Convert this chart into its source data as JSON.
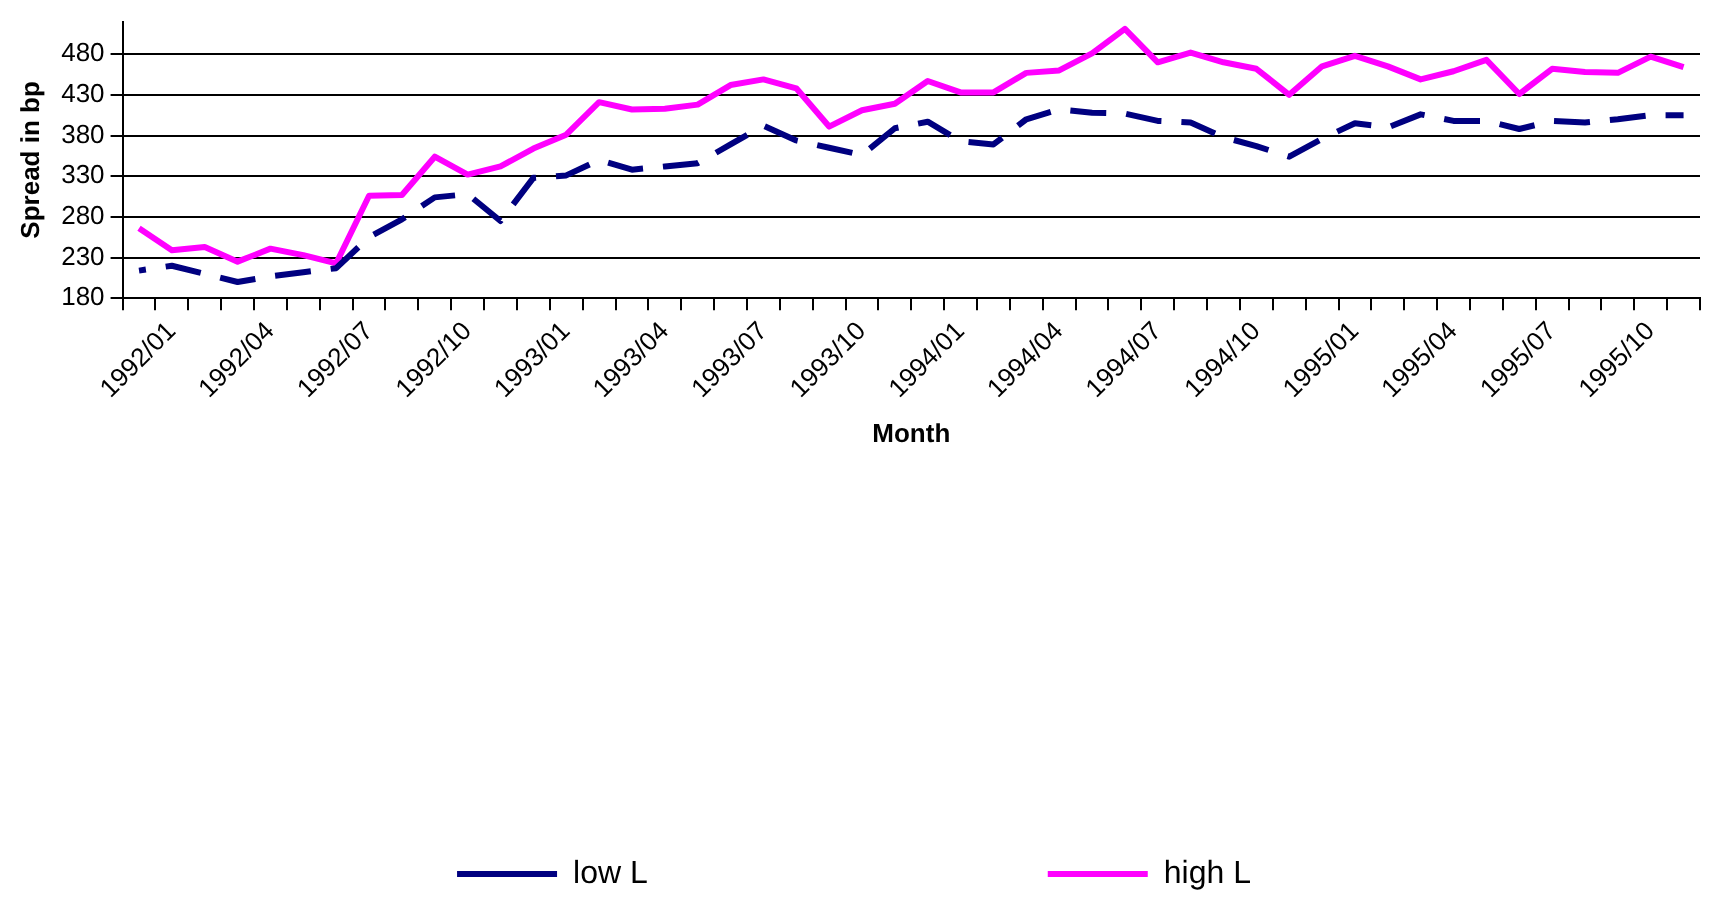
{
  "chart_data": {
    "type": "line",
    "xlabel": "Month",
    "ylabel": "Spread in bp",
    "categories": [
      null,
      "1992/01",
      null,
      null,
      "1992/04",
      null,
      null,
      "1992/07",
      null,
      null,
      "1992/10",
      null,
      null,
      "1993/01",
      null,
      null,
      "1993/04",
      null,
      null,
      "1993/07",
      null,
      null,
      "1993/10",
      null,
      null,
      "1994/01",
      null,
      null,
      "1994/04",
      null,
      null,
      "1994/07",
      null,
      null,
      "1994/10",
      null,
      null,
      "1995/01",
      null,
      null,
      "1995/04",
      null,
      null,
      "1995/07",
      null,
      null,
      "1995/10",
      null
    ],
    "series": [
      {
        "name": "low L",
        "color": "#000080",
        "line_style": "dashed",
        "values": [
          214,
          220,
          210,
          200,
          207,
          212,
          217,
          255,
          277,
          304,
          308,
          275,
          328,
          331,
          350,
          338,
          342,
          346,
          369,
          392,
          374,
          365,
          356,
          389,
          397,
          373,
          369,
          400,
          412,
          408,
          407,
          398,
          396,
          378,
          367,
          354,
          376,
          395,
          390,
          406,
          398,
          398,
          388,
          398,
          396,
          400,
          405,
          405
        ]
      },
      {
        "name": "high L",
        "color": "#ff00ff",
        "line_style": "solid",
        "values": [
          266,
          239,
          243,
          225,
          241,
          233,
          223,
          306,
          307,
          354,
          332,
          342,
          364,
          381,
          421,
          412,
          413,
          418,
          442,
          449,
          438,
          391,
          411,
          419,
          447,
          433,
          433,
          457,
          460,
          481,
          511,
          470,
          482,
          470,
          462,
          430,
          465,
          478,
          465,
          449,
          459,
          473,
          431,
          462,
          458,
          457,
          477,
          464
        ]
      }
    ],
    "ylim": [
      180,
      520
    ],
    "yticks": [
      180,
      230,
      280,
      330,
      380,
      430,
      480
    ],
    "grid": "y",
    "legend": "bottom",
    "marker": "none"
  }
}
